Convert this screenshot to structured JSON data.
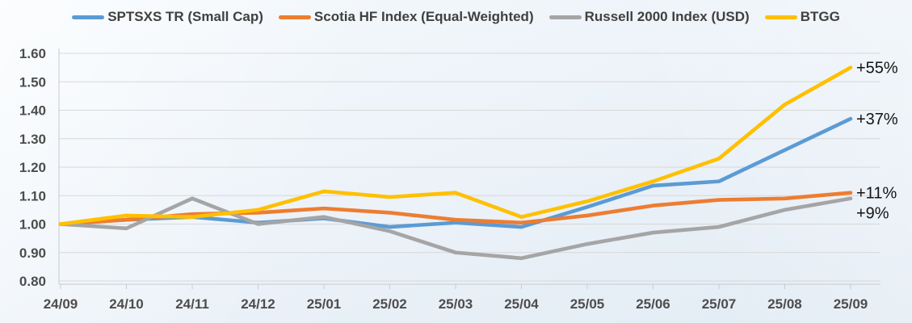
{
  "chart_data": {
    "type": "line",
    "title": "",
    "x_labels": [
      "24/09",
      "24/10",
      "24/11",
      "24/12",
      "25/01",
      "25/02",
      "25/03",
      "25/04",
      "25/05",
      "25/06",
      "25/07",
      "25/08",
      "25/09"
    ],
    "series": [
      {
        "name": "SPTSXS TR (Small Cap)",
        "color": "#5B9BD5",
        "end_label": "+37%",
        "values": [
          1.0,
          1.015,
          1.025,
          1.005,
          1.02,
          0.99,
          1.005,
          0.99,
          1.06,
          1.135,
          1.15,
          1.26,
          1.37
        ]
      },
      {
        "name": "Scotia HF Index (Equal-Weighted)",
        "color": "#ED7D31",
        "end_label": "+11%",
        "values": [
          1.0,
          1.015,
          1.035,
          1.04,
          1.055,
          1.04,
          1.015,
          1.005,
          1.03,
          1.065,
          1.085,
          1.09,
          1.11
        ]
      },
      {
        "name": "Russell 2000 Index (USD)",
        "color": "#A5A5A5",
        "end_label": "+9%",
        "values": [
          1.0,
          0.985,
          1.09,
          1.0,
          1.025,
          0.975,
          0.9,
          0.88,
          0.93,
          0.97,
          0.99,
          1.05,
          1.09
        ]
      },
      {
        "name": "BTGG",
        "color": "#FFC000",
        "end_label": "+55%",
        "values": [
          1.0,
          1.03,
          1.025,
          1.05,
          1.115,
          1.095,
          1.11,
          1.025,
          1.08,
          1.15,
          1.23,
          1.42,
          1.55
        ]
      }
    ],
    "y_ticks": [
      "1.60",
      "1.50",
      "1.40",
      "1.30",
      "1.20",
      "1.10",
      "1.00",
      "0.90",
      "0.80"
    ],
    "ylim": [
      0.8,
      1.6
    ],
    "grid": "horizontal",
    "legend_position": "top"
  }
}
